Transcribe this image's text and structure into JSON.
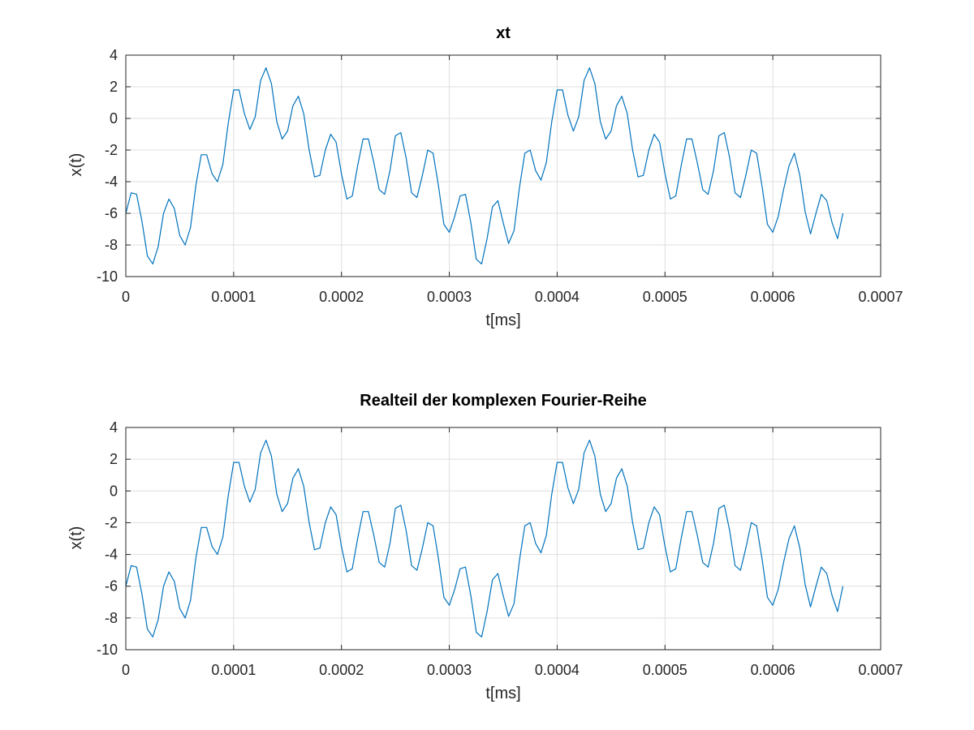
{
  "colors": {
    "series": "#0072bd",
    "axes": "#262626",
    "grid": "#dfdfdf"
  },
  "chart_data": [
    {
      "type": "line",
      "title": "xt",
      "xlabel": "t[ms]",
      "ylabel": "x(t)",
      "xlim": [
        0,
        0.0007
      ],
      "ylim": [
        -10,
        4
      ],
      "xticks": [
        0,
        0.0001,
        0.0002,
        0.0003,
        0.0004,
        0.0005,
        0.0006,
        0.0007
      ],
      "xtick_labels": [
        "0",
        "0.0001",
        "0.0002",
        "0.0003",
        "0.0004",
        "0.0005",
        "0.0006",
        "0.0007"
      ],
      "yticks": [
        -10,
        -8,
        -6,
        -4,
        -2,
        0,
        2,
        4
      ],
      "ytick_labels": [
        "-10",
        "-8",
        "-6",
        "-4",
        "-2",
        "0",
        "2",
        "4"
      ],
      "grid": true,
      "series": [
        {
          "x": [
            0,
            5e-06,
            1e-05,
            1.5e-05,
            2e-05,
            2.5e-05,
            3e-05,
            3.5e-05,
            4e-05,
            4.5e-05,
            5e-05,
            5.5e-05,
            6e-05,
            6.5e-05,
            7e-05,
            7.5e-05,
            8e-05,
            8.5e-05,
            9e-05,
            9.5e-05,
            0.0001,
            0.000105,
            0.00011,
            0.000115,
            0.00012,
            0.000125,
            0.00013,
            0.000135,
            0.00014,
            0.000145,
            0.00015,
            0.000155,
            0.00016,
            0.000165,
            0.00017,
            0.000175,
            0.00018,
            0.000185,
            0.00019,
            0.000195,
            0.0002,
            0.000205,
            0.00021,
            0.000215,
            0.00022,
            0.000225,
            0.00023,
            0.000235,
            0.00024,
            0.000245,
            0.00025,
            0.000255,
            0.00026,
            0.000265,
            0.00027,
            0.000275,
            0.00028,
            0.000285,
            0.00029,
            0.000295,
            0.0003,
            0.000305,
            0.00031,
            0.000315,
            0.00032,
            0.000325,
            0.00033,
            0.000335,
            0.00034,
            0.000345,
            0.00035,
            0.000355,
            0.00036,
            0.000365,
            0.00037,
            0.000375,
            0.00038,
            0.000385,
            0.00039,
            0.000395,
            0.0004,
            0.000405,
            0.00041,
            0.000415,
            0.00042,
            0.000425,
            0.00043,
            0.000435,
            0.00044,
            0.000445,
            0.00045,
            0.000455,
            0.00046,
            0.000465,
            0.00047,
            0.000475,
            0.00048,
            0.000485,
            0.00049,
            0.000495,
            0.0005,
            0.000505,
            0.00051,
            0.000515,
            0.00052,
            0.000525,
            0.00053,
            0.000535,
            0.00054,
            0.000545,
            0.00055,
            0.000555,
            0.00056,
            0.000565,
            0.00057,
            0.000575,
            0.00058,
            0.000585,
            0.00059,
            0.000595,
            0.0006,
            0.000605,
            0.00061,
            0.000615,
            0.00062,
            0.000625,
            0.00063,
            0.000635,
            0.00064,
            0.000645,
            0.00065,
            0.000655,
            0.00066,
            0.000665
          ],
          "values": [
            -6.0,
            -4.7,
            -4.8,
            -6.5,
            -8.7,
            -9.2,
            -8.1,
            -6.0,
            -5.1,
            -5.7,
            -7.4,
            -8.0,
            -6.9,
            -4.2,
            -2.3,
            -2.3,
            -3.5,
            -4.0,
            -2.9,
            -0.3,
            1.8,
            1.8,
            0.3,
            -0.7,
            0.1,
            2.4,
            3.2,
            2.2,
            -0.2,
            -1.3,
            -0.8,
            0.8,
            1.4,
            0.3,
            -2.0,
            -3.7,
            -3.6,
            -2.0,
            -1.0,
            -1.5,
            -3.5,
            -5.1,
            -4.9,
            -3.0,
            -1.3,
            -1.3,
            -2.8,
            -4.5,
            -4.8,
            -3.3,
            -1.1,
            -0.9,
            -2.5,
            -4.7,
            -5.0,
            -3.6,
            -2.0,
            -2.2,
            -4.3,
            -6.7,
            -7.2,
            -6.2,
            -4.9,
            -4.8,
            -6.6,
            -8.9,
            -9.2,
            -7.6,
            -5.6,
            -5.2,
            -6.6,
            -7.9,
            -7.1,
            -4.4,
            -2.2,
            -2.0,
            -3.3,
            -3.9,
            -2.8,
            -0.2,
            1.8,
            1.8,
            0.2,
            -0.8,
            0.1,
            2.4,
            3.2,
            2.2,
            -0.2,
            -1.3,
            -0.8,
            0.8,
            1.4,
            0.3,
            -2.0,
            -3.7,
            -3.6,
            -2.0,
            -1.0,
            -1.5,
            -3.5,
            -5.1,
            -4.9,
            -3.0,
            -1.3,
            -1.3,
            -2.8,
            -4.5,
            -4.8,
            -3.3,
            -1.1,
            -0.9,
            -2.5,
            -4.7,
            -5.0,
            -3.6,
            -2.0,
            -2.2,
            -4.3,
            -6.7,
            -7.2,
            -6.2,
            -4.5,
            -3.0,
            -2.2,
            -3.6,
            -5.9,
            -7.3,
            -6.0,
            -4.8,
            -5.2,
            -6.6,
            -7.6,
            -6.0
          ]
        }
      ]
    },
    {
      "type": "line",
      "title": "Realteil der komplexen Fourier-Reihe",
      "xlabel": "t[ms]",
      "ylabel": "x(t)",
      "xlim": [
        0,
        0.0007
      ],
      "ylim": [
        -10,
        4
      ],
      "xticks": [
        0,
        0.0001,
        0.0002,
        0.0003,
        0.0004,
        0.0005,
        0.0006,
        0.0007
      ],
      "xtick_labels": [
        "0",
        "0.0001",
        "0.0002",
        "0.0003",
        "0.0004",
        "0.0005",
        "0.0006",
        "0.0007"
      ],
      "yticks": [
        -10,
        -8,
        -6,
        -4,
        -2,
        0,
        2,
        4
      ],
      "ytick_labels": [
        "-10",
        "-8",
        "-6",
        "-4",
        "-2",
        "0",
        "2",
        "4"
      ],
      "grid": true,
      "series": [
        {
          "x": [
            0,
            5e-06,
            1e-05,
            1.5e-05,
            2e-05,
            2.5e-05,
            3e-05,
            3.5e-05,
            4e-05,
            4.5e-05,
            5e-05,
            5.5e-05,
            6e-05,
            6.5e-05,
            7e-05,
            7.5e-05,
            8e-05,
            8.5e-05,
            9e-05,
            9.5e-05,
            0.0001,
            0.000105,
            0.00011,
            0.000115,
            0.00012,
            0.000125,
            0.00013,
            0.000135,
            0.00014,
            0.000145,
            0.00015,
            0.000155,
            0.00016,
            0.000165,
            0.00017,
            0.000175,
            0.00018,
            0.000185,
            0.00019,
            0.000195,
            0.0002,
            0.000205,
            0.00021,
            0.000215,
            0.00022,
            0.000225,
            0.00023,
            0.000235,
            0.00024,
            0.000245,
            0.00025,
            0.000255,
            0.00026,
            0.000265,
            0.00027,
            0.000275,
            0.00028,
            0.000285,
            0.00029,
            0.000295,
            0.0003,
            0.000305,
            0.00031,
            0.000315,
            0.00032,
            0.000325,
            0.00033,
            0.000335,
            0.00034,
            0.000345,
            0.00035,
            0.000355,
            0.00036,
            0.000365,
            0.00037,
            0.000375,
            0.00038,
            0.000385,
            0.00039,
            0.000395,
            0.0004,
            0.000405,
            0.00041,
            0.000415,
            0.00042,
            0.000425,
            0.00043,
            0.000435,
            0.00044,
            0.000445,
            0.00045,
            0.000455,
            0.00046,
            0.000465,
            0.00047,
            0.000475,
            0.00048,
            0.000485,
            0.00049,
            0.000495,
            0.0005,
            0.000505,
            0.00051,
            0.000515,
            0.00052,
            0.000525,
            0.00053,
            0.000535,
            0.00054,
            0.000545,
            0.00055,
            0.000555,
            0.00056,
            0.000565,
            0.00057,
            0.000575,
            0.00058,
            0.000585,
            0.00059,
            0.000595,
            0.0006,
            0.000605,
            0.00061,
            0.000615,
            0.00062,
            0.000625,
            0.00063,
            0.000635,
            0.00064,
            0.000645,
            0.00065,
            0.000655,
            0.00066,
            0.000665
          ],
          "values": [
            -6.0,
            -4.7,
            -4.8,
            -6.5,
            -8.7,
            -9.2,
            -8.1,
            -6.0,
            -5.1,
            -5.7,
            -7.4,
            -8.0,
            -6.9,
            -4.2,
            -2.3,
            -2.3,
            -3.5,
            -4.0,
            -2.9,
            -0.3,
            1.8,
            1.8,
            0.3,
            -0.7,
            0.1,
            2.4,
            3.2,
            2.2,
            -0.2,
            -1.3,
            -0.8,
            0.8,
            1.4,
            0.3,
            -2.0,
            -3.7,
            -3.6,
            -2.0,
            -1.0,
            -1.5,
            -3.5,
            -5.1,
            -4.9,
            -3.0,
            -1.3,
            -1.3,
            -2.8,
            -4.5,
            -4.8,
            -3.3,
            -1.1,
            -0.9,
            -2.5,
            -4.7,
            -5.0,
            -3.6,
            -2.0,
            -2.2,
            -4.3,
            -6.7,
            -7.2,
            -6.2,
            -4.9,
            -4.8,
            -6.6,
            -8.9,
            -9.2,
            -7.6,
            -5.6,
            -5.2,
            -6.6,
            -7.9,
            -7.1,
            -4.4,
            -2.2,
            -2.0,
            -3.3,
            -3.9,
            -2.8,
            -0.2,
            1.8,
            1.8,
            0.2,
            -0.8,
            0.1,
            2.4,
            3.2,
            2.2,
            -0.2,
            -1.3,
            -0.8,
            0.8,
            1.4,
            0.3,
            -2.0,
            -3.7,
            -3.6,
            -2.0,
            -1.0,
            -1.5,
            -3.5,
            -5.1,
            -4.9,
            -3.0,
            -1.3,
            -1.3,
            -2.8,
            -4.5,
            -4.8,
            -3.3,
            -1.1,
            -0.9,
            -2.5,
            -4.7,
            -5.0,
            -3.6,
            -2.0,
            -2.2,
            -4.3,
            -6.7,
            -7.2,
            -6.2,
            -4.5,
            -3.0,
            -2.2,
            -3.6,
            -5.9,
            -7.3,
            -6.0,
            -4.8,
            -5.2,
            -6.6,
            -7.6,
            -6.0
          ]
        }
      ]
    }
  ]
}
